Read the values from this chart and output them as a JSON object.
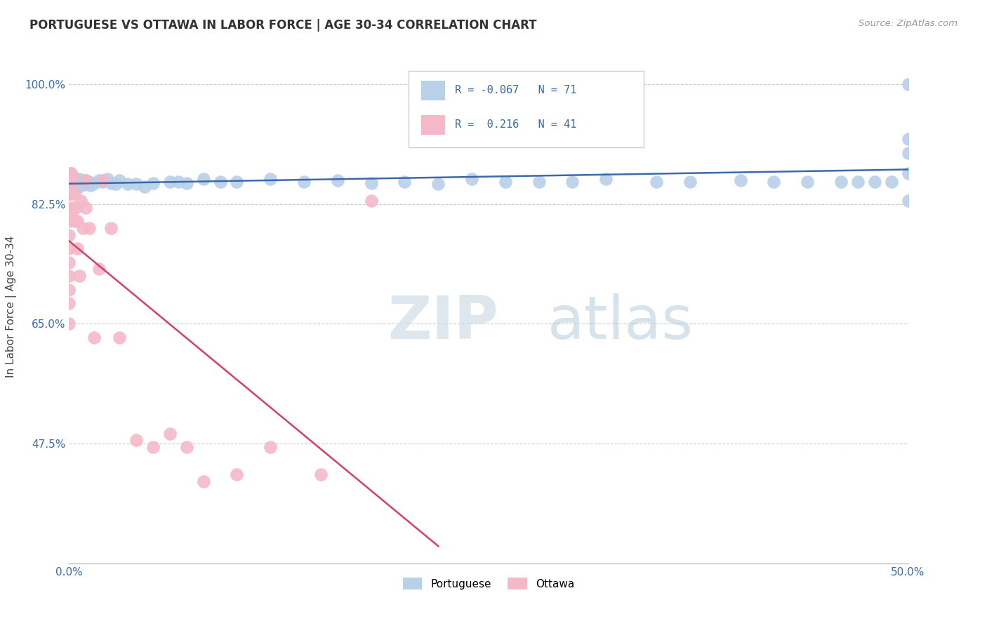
{
  "title": "PORTUGUESE VS OTTAWA IN LABOR FORCE | AGE 30-34 CORRELATION CHART",
  "source": "Source: ZipAtlas.com",
  "ylabel": "In Labor Force | Age 30-34",
  "legend_R_blue": "-0.067",
  "legend_N_blue": "71",
  "legend_R_pink": "0.216",
  "legend_N_pink": "41",
  "blue_color": "#b8d0e8",
  "pink_color": "#f5b8c8",
  "blue_line_color": "#3a6aaa",
  "pink_line_color": "#d84060",
  "tick_color": "#3a6aaa",
  "watermark_color": "#d0dce8",
  "background_color": "#ffffff",
  "grid_color": "#cccccc",
  "blue_x": [
    0.0,
    0.0,
    0.0,
    0.0,
    0.0,
    0.0,
    0.001,
    0.001,
    0.001,
    0.001,
    0.002,
    0.002,
    0.002,
    0.003,
    0.003,
    0.003,
    0.004,
    0.004,
    0.005,
    0.005,
    0.006,
    0.006,
    0.007,
    0.008,
    0.009,
    0.01,
    0.01,
    0.012,
    0.013,
    0.015,
    0.018,
    0.02,
    0.023,
    0.025,
    0.028,
    0.03,
    0.035,
    0.04,
    0.045,
    0.05,
    0.06,
    0.065,
    0.07,
    0.08,
    0.09,
    0.1,
    0.12,
    0.14,
    0.16,
    0.18,
    0.2,
    0.22,
    0.24,
    0.26,
    0.28,
    0.3,
    0.32,
    0.35,
    0.37,
    0.4,
    0.42,
    0.44,
    0.46,
    0.47,
    0.48,
    0.49,
    0.5,
    0.5,
    0.5,
    0.5,
    0.5
  ],
  "blue_y": [
    0.86,
    0.86,
    0.86,
    0.87,
    0.85,
    0.84,
    0.86,
    0.855,
    0.87,
    0.85,
    0.855,
    0.865,
    0.85,
    0.86,
    0.855,
    0.845,
    0.86,
    0.85,
    0.858,
    0.848,
    0.862,
    0.852,
    0.856,
    0.858,
    0.854,
    0.86,
    0.855,
    0.858,
    0.852,
    0.856,
    0.86,
    0.858,
    0.862,
    0.856,
    0.855,
    0.86,
    0.855,
    0.855,
    0.85,
    0.856,
    0.858,
    0.858,
    0.856,
    0.862,
    0.858,
    0.858,
    0.862,
    0.858,
    0.86,
    0.856,
    0.858,
    0.855,
    0.862,
    0.858,
    0.858,
    0.858,
    0.862,
    0.858,
    0.858,
    0.86,
    0.858,
    0.858,
    0.858,
    0.858,
    0.858,
    0.858,
    1.0,
    0.92,
    0.9,
    0.87,
    0.83
  ],
  "pink_x": [
    0.0,
    0.0,
    0.0,
    0.0,
    0.0,
    0.0,
    0.0,
    0.0,
    0.0,
    0.0,
    0.0,
    0.001,
    0.001,
    0.001,
    0.002,
    0.002,
    0.003,
    0.003,
    0.004,
    0.005,
    0.005,
    0.006,
    0.007,
    0.008,
    0.01,
    0.01,
    0.012,
    0.015,
    0.018,
    0.02,
    0.025,
    0.03,
    0.04,
    0.05,
    0.06,
    0.07,
    0.08,
    0.1,
    0.12,
    0.15,
    0.18
  ],
  "pink_y": [
    0.86,
    0.84,
    0.82,
    0.8,
    0.78,
    0.76,
    0.74,
    0.72,
    0.7,
    0.68,
    0.65,
    0.87,
    0.84,
    0.81,
    0.86,
    0.82,
    0.84,
    0.8,
    0.82,
    0.8,
    0.76,
    0.72,
    0.83,
    0.79,
    0.86,
    0.82,
    0.79,
    0.63,
    0.73,
    0.86,
    0.79,
    0.63,
    0.48,
    0.47,
    0.49,
    0.47,
    0.42,
    0.43,
    0.47,
    0.43,
    0.83
  ],
  "xlim": [
    0.0,
    0.5
  ],
  "ylim": [
    0.3,
    1.05
  ],
  "ytick_vals": [
    0.475,
    0.65,
    0.825,
    1.0
  ],
  "ytick_labels": [
    "47.5%",
    "65.0%",
    "82.5%",
    "100.0%"
  ]
}
